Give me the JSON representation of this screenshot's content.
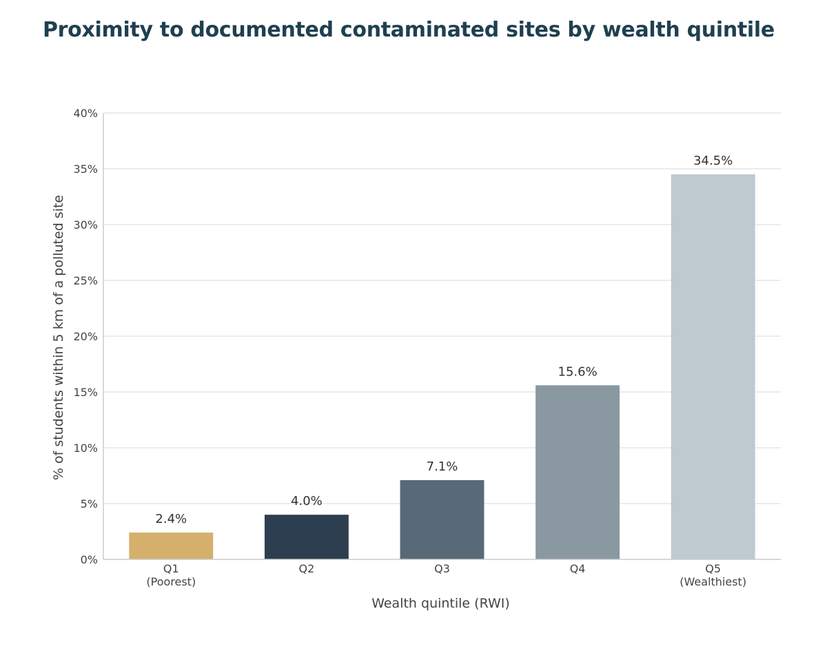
{
  "title": "Proximity to documented contaminated sites by wealth quintile",
  "chart_data": {
    "type": "bar",
    "title": "Proximity to documented contaminated sites by wealth quintile",
    "categories": [
      [
        "Q1",
        "(Poorest)"
      ],
      [
        "Q2"
      ],
      [
        "Q3"
      ],
      [
        "Q4"
      ],
      [
        "Q5",
        "(Wealthiest)"
      ]
    ],
    "values": [
      2.4,
      4.0,
      7.1,
      15.6,
      34.5
    ],
    "value_labels": [
      "2.4%",
      "4.0%",
      "7.1%",
      "15.6%",
      "34.5%"
    ],
    "colors": [
      "#d4b06c",
      "#2d3e50",
      "#586a78",
      "#8a98a2",
      "#bfc9d0"
    ],
    "xlabel": "Wealth quintile (RWI)",
    "ylabel": "% of students within 5 km of a polluted site",
    "ylim": [
      0,
      40
    ],
    "yticks": [
      0,
      5,
      10,
      15,
      20,
      25,
      30,
      35,
      40
    ],
    "ytick_labels": [
      "0%",
      "5%",
      "10%",
      "15%",
      "20%",
      "25%",
      "30%",
      "35%",
      "40%"
    ],
    "grid": "horizontal",
    "legend": "none"
  }
}
